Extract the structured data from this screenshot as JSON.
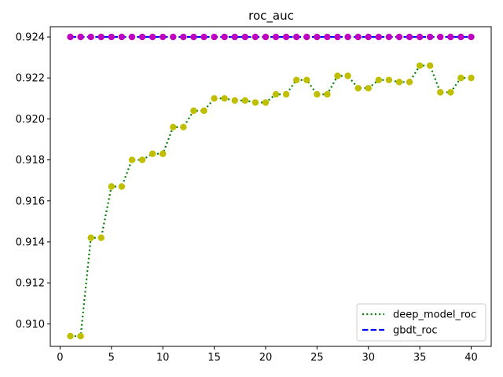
{
  "chart_data": {
    "type": "line",
    "title": "roc_auc",
    "xlabel": "",
    "ylabel": "",
    "xlim": [
      -0.95,
      41.95
    ],
    "ylim": [
      0.9089,
      0.9245
    ],
    "xticks": [
      0,
      5,
      10,
      15,
      20,
      25,
      30,
      35,
      40
    ],
    "yticks": [
      0.91,
      0.912,
      0.914,
      0.916,
      0.918,
      0.92,
      0.922,
      0.924
    ],
    "ytick_labels": [
      "0.910",
      "0.912",
      "0.914",
      "0.916",
      "0.918",
      "0.920",
      "0.922",
      "0.924"
    ],
    "grid": false,
    "legend_position": "lower-right",
    "x": [
      1,
      2,
      3,
      4,
      5,
      6,
      7,
      8,
      9,
      10,
      11,
      12,
      13,
      14,
      15,
      16,
      17,
      18,
      19,
      20,
      21,
      22,
      23,
      24,
      25,
      26,
      27,
      28,
      29,
      30,
      31,
      32,
      33,
      34,
      35,
      36,
      37,
      38,
      39,
      40
    ],
    "series": [
      {
        "name": "deep_model_roc",
        "line_style": "dotted",
        "line_color": "#007f00",
        "marker_color": "#bfbf00",
        "values": [
          0.9094,
          0.9094,
          0.9142,
          0.9142,
          0.9167,
          0.9167,
          0.918,
          0.918,
          0.9183,
          0.9183,
          0.9196,
          0.9196,
          0.9204,
          0.9204,
          0.921,
          0.921,
          0.9209,
          0.9209,
          0.9208,
          0.9208,
          0.9212,
          0.9212,
          0.9219,
          0.9219,
          0.9212,
          0.9212,
          0.9221,
          0.9221,
          0.9215,
          0.9215,
          0.9219,
          0.9219,
          0.9218,
          0.9218,
          0.9226,
          0.9226,
          0.9213,
          0.9213,
          0.922,
          0.922
        ]
      },
      {
        "name": "gbdt_roc",
        "line_style": "dashed",
        "line_color": "#0000ff",
        "marker_color": "#bf00bf",
        "values": [
          0.924,
          0.924,
          0.924,
          0.924,
          0.924,
          0.924,
          0.924,
          0.924,
          0.924,
          0.924,
          0.924,
          0.924,
          0.924,
          0.924,
          0.924,
          0.924,
          0.924,
          0.924,
          0.924,
          0.924,
          0.924,
          0.924,
          0.924,
          0.924,
          0.924,
          0.924,
          0.924,
          0.924,
          0.924,
          0.924,
          0.924,
          0.924,
          0.924,
          0.924,
          0.924,
          0.924,
          0.924,
          0.924,
          0.924,
          0.924
        ]
      }
    ]
  }
}
